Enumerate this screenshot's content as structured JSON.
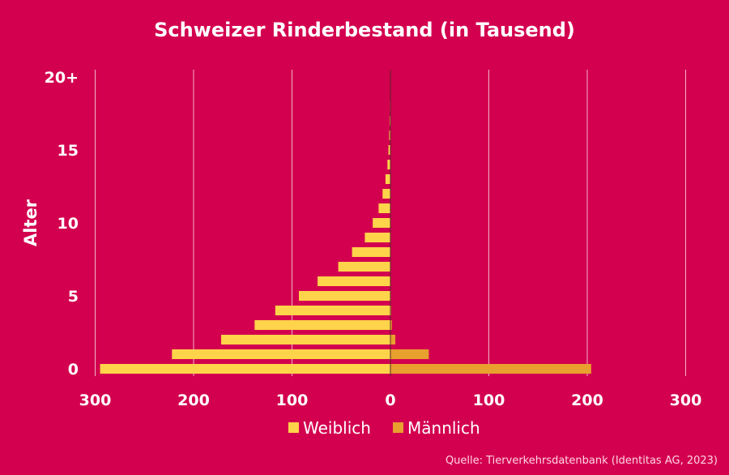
{
  "chart_data": {
    "type": "bar",
    "orientation": "horizontal",
    "layout": "population-pyramid",
    "title": "Schweizer Rinderbestand (in Tausend)",
    "ylabel": "Alter",
    "xlabel": "",
    "x_ticks": [
      "300",
      "200",
      "100",
      "0",
      "100",
      "200",
      "300"
    ],
    "y_ticks": [
      "0",
      "5",
      "10",
      "15",
      "20+"
    ],
    "xlim": [
      -300,
      300
    ],
    "ylim": [
      0,
      20
    ],
    "ages": [
      0,
      1,
      2,
      3,
      4,
      5,
      6,
      7,
      8,
      9,
      10,
      11,
      12,
      13,
      14,
      15,
      16,
      17,
      18,
      19,
      20
    ],
    "series": [
      {
        "name": "Weiblich",
        "side": "left",
        "color": "#ffd34a",
        "values": [
          295,
          222,
          172,
          138,
          117,
          93,
          74,
          53,
          39,
          26,
          18,
          12,
          8,
          5,
          3,
          2,
          1.2,
          0.8,
          0.5,
          0.3,
          0.2
        ]
      },
      {
        "name": "Männlich",
        "side": "right",
        "color": "#e8a02e",
        "values": [
          204,
          39,
          5,
          1.5,
          0.8,
          0.5,
          0.3,
          0.2,
          0.1,
          0.1,
          0.1,
          0,
          0,
          0,
          0,
          0,
          0,
          0,
          0,
          0,
          0
        ]
      }
    ],
    "grid": true,
    "legend_position": "bottom-center",
    "source": "Quelle: Tierverkehrsdatenbank (Identitas AG, 2023)"
  }
}
